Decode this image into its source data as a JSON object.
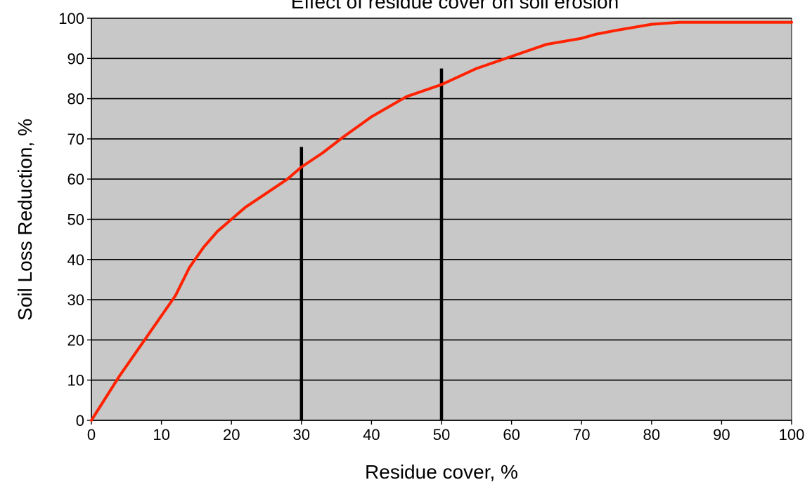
{
  "chart_data": {
    "type": "line",
    "title": "Effect of residue cover on soil erosion",
    "xlabel": "Residue cover,  %",
    "ylabel": "Soil Loss Reduction,  %",
    "xlim": [
      0,
      100
    ],
    "ylim": [
      0,
      100
    ],
    "x_ticks": [
      "0",
      "10",
      "20",
      "30",
      "40",
      "50",
      "60",
      "70",
      "80",
      "90",
      "100"
    ],
    "y_ticks": [
      "0",
      "10",
      "20",
      "30",
      "40",
      "50",
      "60",
      "70",
      "80",
      "90",
      "100"
    ],
    "grid": "horizontal",
    "plot_background": "#c8c8c8",
    "series": [
      {
        "color": "#ff2200",
        "x": [
          0,
          2,
          4,
          6,
          8,
          10,
          12,
          14,
          16,
          18,
          20,
          22,
          25,
          28,
          30,
          33,
          36,
          40,
          45,
          50,
          55,
          60,
          65,
          70,
          72,
          75,
          80,
          84,
          90,
          100
        ],
        "y": [
          0,
          5.5,
          11,
          16,
          21,
          26,
          31,
          38,
          43,
          47,
          50,
          53,
          56.5,
          60,
          63,
          66.5,
          70.5,
          75.5,
          80.5,
          83.5,
          87.5,
          90.5,
          93.5,
          95,
          96,
          97,
          98.5,
          99,
          99,
          99
        ]
      }
    ],
    "reference_lines": [
      {
        "x": 30,
        "y_top": 68,
        "color": "#000000"
      },
      {
        "x": 50,
        "y_top": 87.5,
        "color": "#000000"
      }
    ]
  }
}
